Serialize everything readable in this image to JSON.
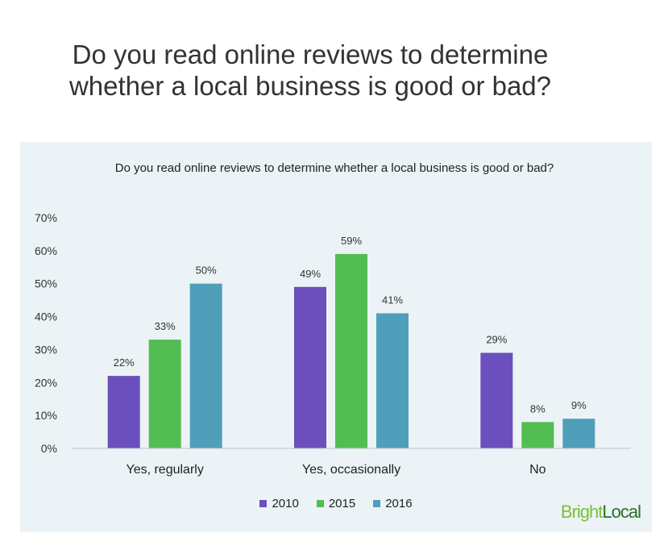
{
  "headline": "Do you read online reviews to determine whether a local business is good or bad?",
  "brand": {
    "part1": "Bright",
    "part2": "Local"
  },
  "chart_data": {
    "type": "bar",
    "title": "Do you read online reviews to determine whether a local business is good or bad?",
    "xlabel": "",
    "ylabel": "",
    "ylim": [
      0,
      70
    ],
    "y_ticks": [
      "0%",
      "10%",
      "20%",
      "30%",
      "40%",
      "50%",
      "60%",
      "70%"
    ],
    "y_tick_values": [
      0,
      10,
      20,
      30,
      40,
      50,
      60,
      70
    ],
    "categories": [
      "Yes, regularly",
      "Yes, occasionally",
      "No"
    ],
    "series": [
      {
        "name": "2010",
        "values": [
          22,
          49,
          29
        ],
        "labels": [
          "22%",
          "49%",
          "29%"
        ],
        "color": "#6a4fbd"
      },
      {
        "name": "2015",
        "values": [
          33,
          59,
          8
        ],
        "labels": [
          "33%",
          "59%",
          "8%"
        ],
        "color": "#52bd52"
      },
      {
        "name": "2016",
        "values": [
          50,
          41,
          9
        ],
        "labels": [
          "50%",
          "41%",
          "9%"
        ],
        "color": "#4f9fba"
      }
    ],
    "grid": false,
    "legend_position": "bottom"
  }
}
